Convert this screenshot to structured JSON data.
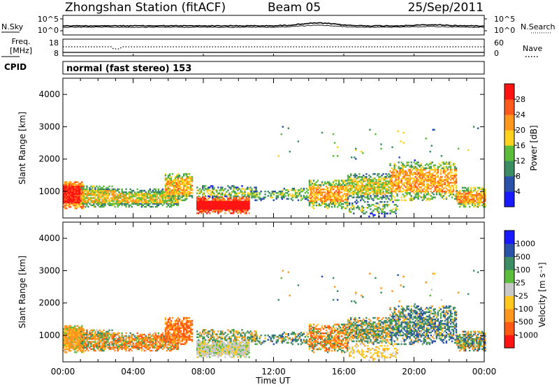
{
  "header": {
    "station": "Zhongshan Station (fitACF)",
    "beam": "Beam 05",
    "date": "25/Sep/2011"
  },
  "noise_panel": {
    "left_label": "N.Sky",
    "left_ticks": [
      "10^5",
      "10^0"
    ],
    "right_ticks": [
      "10^5",
      "10^0"
    ],
    "right_label": "N.Search"
  },
  "freq_panel": {
    "left_label_line1": "Freq.",
    "left_label_line2": "[MHz]",
    "left_ticks": [
      "18",
      "8"
    ],
    "right_ticks": [
      "60",
      "0"
    ],
    "right_label": "Nave"
  },
  "cpid_panel": {
    "label": "CPID",
    "mode_text": "normal (fast stereo) 153"
  },
  "colors": {
    "power": [
      "#1a1aff",
      "#2a52a8",
      "#3c8c64",
      "#5cbc3c",
      "#ffd21e",
      "#ff961e",
      "#ff5a1e",
      "#ff1414"
    ],
    "velocity": [
      "#ff1414",
      "#ff5a14",
      "#ff961e",
      "#ffc81e",
      "#c8c8c8",
      "#5cbc3c",
      "#3c8c64",
      "#2a52a8",
      "#1a1aff"
    ]
  },
  "chart_data": [
    {
      "type": "heatmap",
      "quantity": "power",
      "ylabel": "Slant Range [km]",
      "ylim": [
        180,
        4500
      ],
      "yticks": [
        "1000",
        "2000",
        "3000",
        "4000"
      ],
      "xlim": [
        "00:00",
        "24:00"
      ],
      "colorbar": {
        "label": "Power [dB]",
        "range": [
          0,
          32
        ],
        "ticks": [
          "4",
          "8",
          "12",
          "16",
          "20",
          "24",
          "28"
        ]
      }
    },
    {
      "type": "heatmap",
      "quantity": "velocity",
      "ylabel": "Slant Range [km]",
      "ylim": [
        180,
        4500
      ],
      "yticks": [
        "1000",
        "2000",
        "3000",
        "4000"
      ],
      "xlim": [
        "00:00",
        "24:00"
      ],
      "colorbar": {
        "label": "Velocity [m s⁻¹]",
        "ticks": [
          "-1000",
          "-500",
          "-100",
          "-25",
          "25",
          "100",
          "500",
          "1000"
        ]
      }
    }
  ],
  "xaxis": {
    "ticks": [
      "00:00",
      "04:00",
      "08:00",
      "12:00",
      "16:00",
      "20:00",
      "00:00"
    ],
    "label": "Time UT"
  },
  "scatter_regions": [
    {
      "t0": 0.0,
      "t1": 1.2,
      "r0": 450,
      "r1": 1300,
      "density": 1.0,
      "pv": 26,
      "vel": -200,
      "vspread": 300
    },
    {
      "t0": 1.0,
      "t1": 3.0,
      "r0": 500,
      "r1": 1150,
      "density": 0.85,
      "pv": 15,
      "vel": -150,
      "vspread": 500
    },
    {
      "t0": 3.0,
      "t1": 6.6,
      "r0": 500,
      "r1": 1050,
      "density": 0.85,
      "pv": 14,
      "vel": -300,
      "vspread": 500
    },
    {
      "t0": 5.8,
      "t1": 7.4,
      "r0": 700,
      "r1": 1550,
      "density": 0.8,
      "pv": 16,
      "vel": -500,
      "vspread": 500
    },
    {
      "t0": 7.6,
      "t1": 10.6,
      "r0": 300,
      "r1": 800,
      "density": 1.0,
      "pv": 29,
      "vel": 0,
      "vspread": 40
    },
    {
      "t0": 7.6,
      "t1": 11.0,
      "r0": 780,
      "r1": 1150,
      "density": 0.5,
      "pv": 11,
      "vel": 50,
      "vspread": 400
    },
    {
      "t0": 10.6,
      "t1": 12.6,
      "r0": 700,
      "r1": 1000,
      "density": 0.4,
      "pv": 10,
      "vel": 300,
      "vspread": 500
    },
    {
      "t0": 12.4,
      "t1": 14.0,
      "r0": 700,
      "r1": 1100,
      "density": 0.45,
      "pv": 11,
      "vel": 200,
      "vspread": 500
    },
    {
      "t0": 14.0,
      "t1": 16.2,
      "r0": 450,
      "r1": 1350,
      "density": 0.7,
      "pv": 17,
      "vel": -300,
      "vspread": 600
    },
    {
      "t0": 16.2,
      "t1": 18.6,
      "r0": 700,
      "r1": 1550,
      "density": 0.7,
      "pv": 13,
      "vel": 80,
      "vspread": 500
    },
    {
      "t0": 16.2,
      "t1": 19.0,
      "r0": 200,
      "r1": 700,
      "density": 0.3,
      "pv": 9,
      "vel": -60,
      "vspread": 60
    },
    {
      "t0": 18.6,
      "t1": 22.4,
      "r0": 700,
      "r1": 1900,
      "density": 0.65,
      "pv": 17,
      "vel": 300,
      "vspread": 500
    },
    {
      "t0": 22.4,
      "t1": 24.0,
      "r0": 500,
      "r1": 1100,
      "density": 0.8,
      "pv": 18,
      "vel": 100,
      "vspread": 600
    },
    {
      "t0": 12.0,
      "t1": 24.0,
      "r0": 1800,
      "r1": 3100,
      "density": 0.015,
      "pv": 10,
      "vel": 100,
      "vspread": 500
    }
  ]
}
